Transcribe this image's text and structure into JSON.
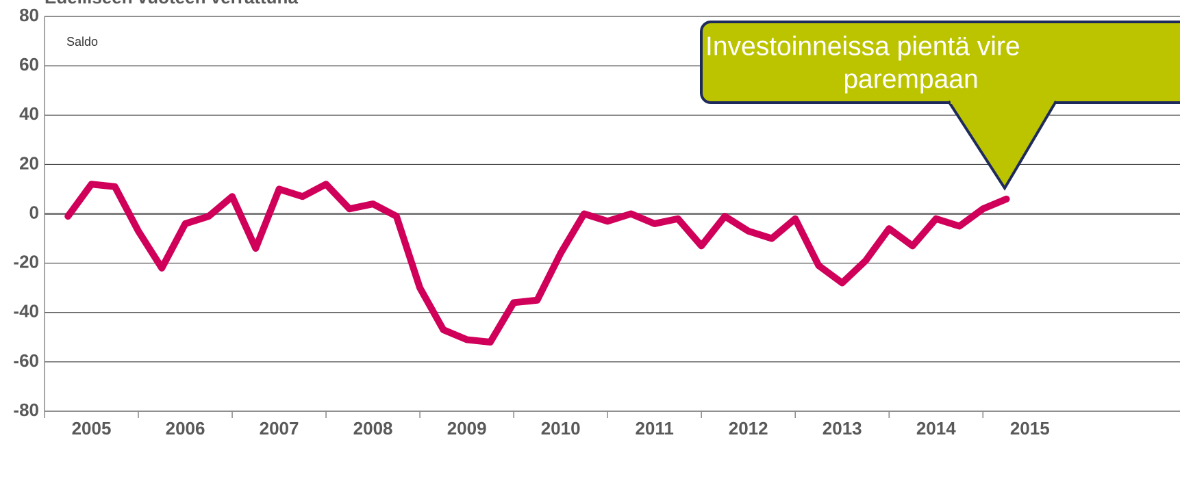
{
  "chart_data": {
    "type": "line",
    "title": "Edelliseen vuoteen verrattuna",
    "y_label": "Saldo",
    "annotation": [
      "Investoinneissa pientä vire",
      "parempaan"
    ],
    "x": [
      2005.25,
      2005.5,
      2005.75,
      2006,
      2006.25,
      2006.5,
      2006.75,
      2007,
      2007.25,
      2007.5,
      2007.75,
      2008,
      2008.25,
      2008.5,
      2008.75,
      2009,
      2009.25,
      2009.5,
      2009.75,
      2010,
      2010.25,
      2010.5,
      2010.75,
      2011,
      2011.25,
      2011.5,
      2011.75,
      2012,
      2012.25,
      2012.5,
      2012.75,
      2013,
      2013.25,
      2013.5,
      2013.75,
      2014,
      2014.25,
      2014.5,
      2014.75,
      2015,
      2015.25
    ],
    "series": [
      {
        "color": "#d0005a",
        "values": [
          -1,
          12,
          11,
          -7,
          -22,
          -4,
          -1,
          7,
          -14,
          10,
          7,
          12,
          2,
          4,
          -1,
          -30,
          -47,
          -51,
          -52,
          -36,
          -35,
          -16,
          0,
          -3,
          0,
          -4,
          -2,
          -13,
          -1,
          -7,
          -10,
          -2,
          -21,
          -28,
          -19,
          -6,
          -13,
          -2,
          -5,
          2,
          6
        ]
      }
    ],
    "xlim": [
      2005,
      2017.1
    ],
    "xticks": [
      {
        "value": 2005.5,
        "label": "2005"
      },
      {
        "value": 2006.5,
        "label": "2006"
      },
      {
        "value": 2007.5,
        "label": "2007"
      },
      {
        "value": 2008.5,
        "label": "2008"
      },
      {
        "value": 2009.5,
        "label": "2009"
      },
      {
        "value": 2010.5,
        "label": "2010"
      },
      {
        "value": 2011.5,
        "label": "2011"
      },
      {
        "value": 2012.5,
        "label": "2012"
      },
      {
        "value": 2013.5,
        "label": "2013"
      },
      {
        "value": 2014.5,
        "label": "2014"
      },
      {
        "value": 2015.5,
        "label": "2015"
      }
    ],
    "ylim": [
      -80,
      80
    ],
    "yticks": [
      -80,
      -60,
      -40,
      -20,
      0,
      20,
      40,
      60,
      80
    ],
    "grid": true
  }
}
